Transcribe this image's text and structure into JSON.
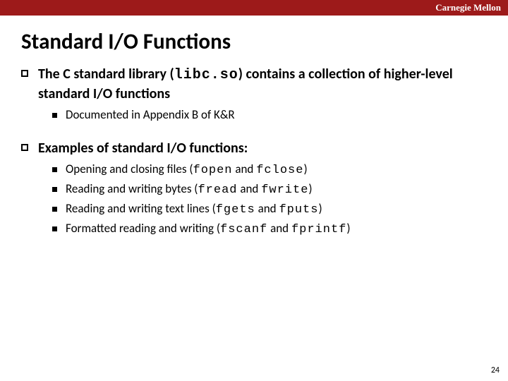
{
  "header": {
    "brand": "Carnegie Mellon",
    "bar_color": "#9d1a1a"
  },
  "title": "Standard I/O Functions",
  "bullets": [
    {
      "parts": [
        {
          "t": "The C standard library (",
          "bold": true
        },
        {
          "t": "libc.so",
          "bold": true,
          "code": true
        },
        {
          "t": ") contains a collection of higher-level standard I/O functions",
          "bold": true
        }
      ],
      "subs": [
        {
          "parts": [
            {
              "t": "Documented in Appendix B of K&R"
            }
          ]
        }
      ]
    },
    {
      "parts": [
        {
          "t": "Examples of standard I/O functions:",
          "bold": true
        }
      ],
      "subs": [
        {
          "parts": [
            {
              "t": "Opening and closing files ("
            },
            {
              "t": "fopen",
              "code": true
            },
            {
              "t": " and "
            },
            {
              "t": "fclose",
              "code": true
            },
            {
              "t": ")"
            }
          ]
        },
        {
          "parts": [
            {
              "t": "Reading and writing bytes ("
            },
            {
              "t": "fread",
              "code": true
            },
            {
              "t": " and "
            },
            {
              "t": "fwrite",
              "code": true
            },
            {
              "t": ")"
            }
          ]
        },
        {
          "parts": [
            {
              "t": "Reading and writing text lines ("
            },
            {
              "t": "fgets",
              "code": true
            },
            {
              "t": " and "
            },
            {
              "t": "fputs",
              "code": true
            },
            {
              "t": ")"
            }
          ]
        },
        {
          "parts": [
            {
              "t": "Formatted reading and writing ("
            },
            {
              "t": "fscanf",
              "code": true
            },
            {
              "t": " and "
            },
            {
              "t": "fprintf",
              "code": true
            },
            {
              "t": ")"
            }
          ]
        }
      ]
    }
  ],
  "page_number": "24"
}
